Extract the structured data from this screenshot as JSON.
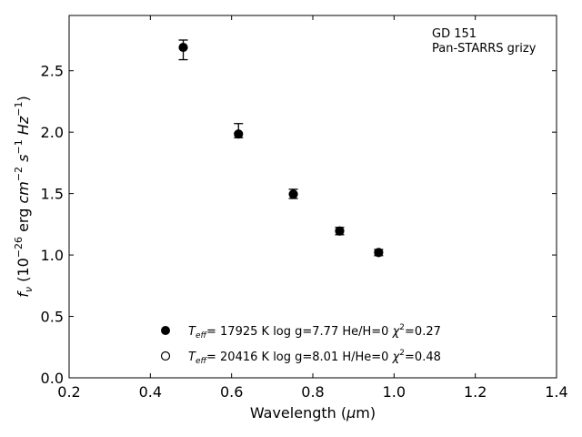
{
  "chart_data": {
    "type": "scatter",
    "title": "",
    "xlabel": "Wavelength (μm)",
    "ylabel": "f_ν (10^-26 erg cm^-2 s^-1 Hz^-1)",
    "xlim": [
      0.2,
      1.4
    ],
    "ylim": [
      0.0,
      2.95
    ],
    "xticks": [
      "0.2",
      "0.4",
      "0.6",
      "0.8",
      "1.0",
      "1.2",
      "1.4"
    ],
    "yticks": [
      "0.0",
      "0.5",
      "1.0",
      "1.5",
      "2.0",
      "2.5"
    ],
    "grid": false,
    "annotation": [
      "GD 151",
      "Pan-STARRS grizy"
    ],
    "series": [
      {
        "name": "Teff= 17925 K  log g=7.77  He/H=0  χ²=0.27",
        "marker": "filled-circle",
        "color": "#000000",
        "points": [
          {
            "x": 0.481,
            "y": 2.69,
            "err_low": 0.1,
            "err_high": 0.06
          },
          {
            "x": 0.617,
            "y": 1.985,
            "err_low": 0.03,
            "err_high": 0.085
          },
          {
            "x": 0.752,
            "y": 1.495,
            "err_low": 0.035,
            "err_high": 0.04
          },
          {
            "x": 0.866,
            "y": 1.195,
            "err_low": 0.03,
            "err_high": 0.03
          },
          {
            "x": 0.962,
            "y": 1.02,
            "err_low": 0.025,
            "err_high": 0.025
          }
        ]
      },
      {
        "name": "Teff= 20416 K  log g=8.01  H/He=0  χ²=0.48",
        "marker": "open-circle",
        "color": "#000000",
        "points": []
      }
    ],
    "legend": {
      "placement": "bottom-center",
      "entries": [
        {
          "teff": "= 17925 K",
          "rest": "log g=7.77  He/H=0",
          "chi": "=0.27"
        },
        {
          "teff": "= 20416 K",
          "rest": "log g=8.01  H/He=0",
          "chi": "=0.48"
        }
      ]
    }
  }
}
